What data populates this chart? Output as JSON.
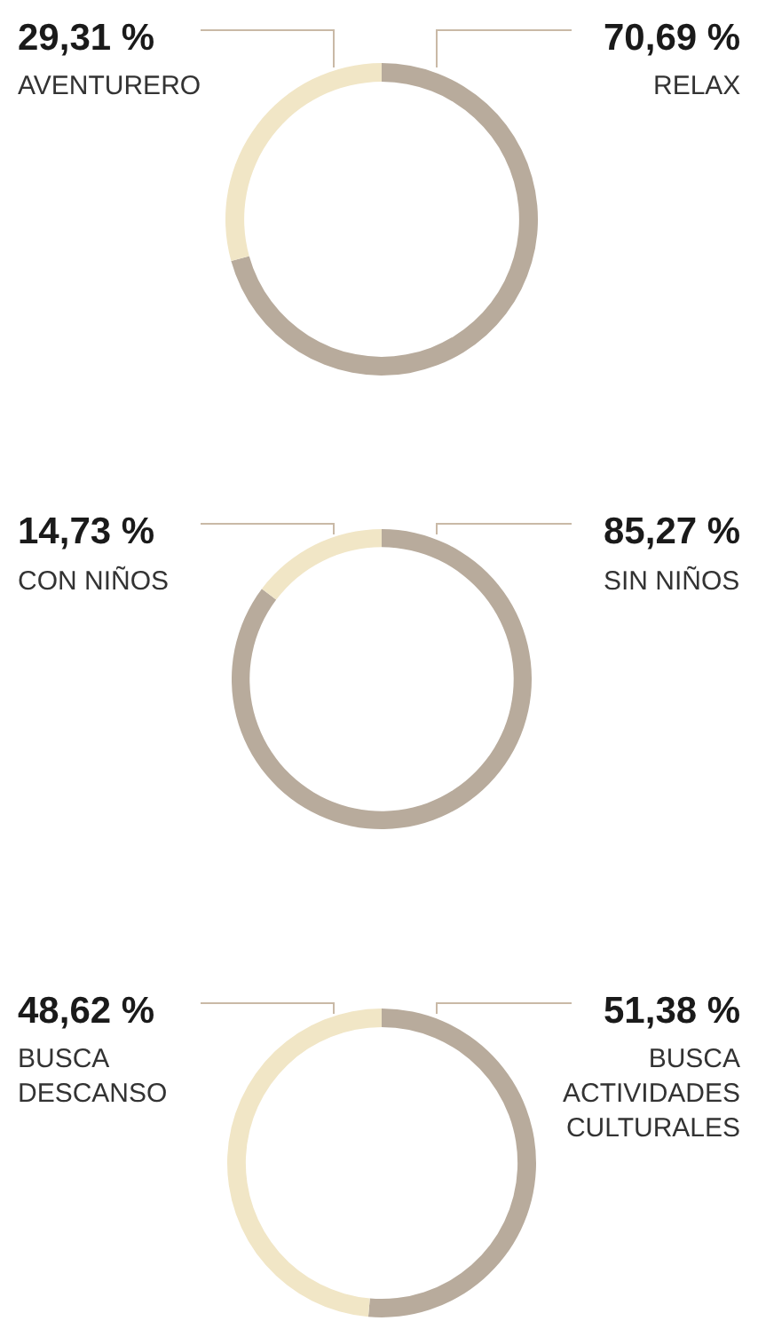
{
  "chart_data": [
    {
      "type": "donut",
      "categories": [
        "RELAX",
        "AVENTURERO"
      ],
      "values": [
        70.69,
        29.31
      ],
      "colors": [
        "#b8ab9c",
        "#f1e6c6"
      ],
      "value_labels": [
        "70,69 %",
        "29,31 %"
      ]
    },
    {
      "type": "donut",
      "categories": [
        "SIN NIÑOS",
        "CON NIÑOS"
      ],
      "values": [
        85.27,
        14.73
      ],
      "colors": [
        "#b8ab9c",
        "#f1e6c6"
      ],
      "value_labels": [
        "85,27 %",
        "14,73 %"
      ]
    },
    {
      "type": "donut",
      "categories": [
        "BUSCA\nACTIVIDADES\nCULTURALES",
        "BUSCA\nDESCANSO"
      ],
      "values": [
        51.38,
        48.62
      ],
      "colors": [
        "#b8ab9c",
        "#f1e6c6"
      ],
      "value_labels": [
        "51,38 %",
        "48,62 %"
      ]
    }
  ]
}
